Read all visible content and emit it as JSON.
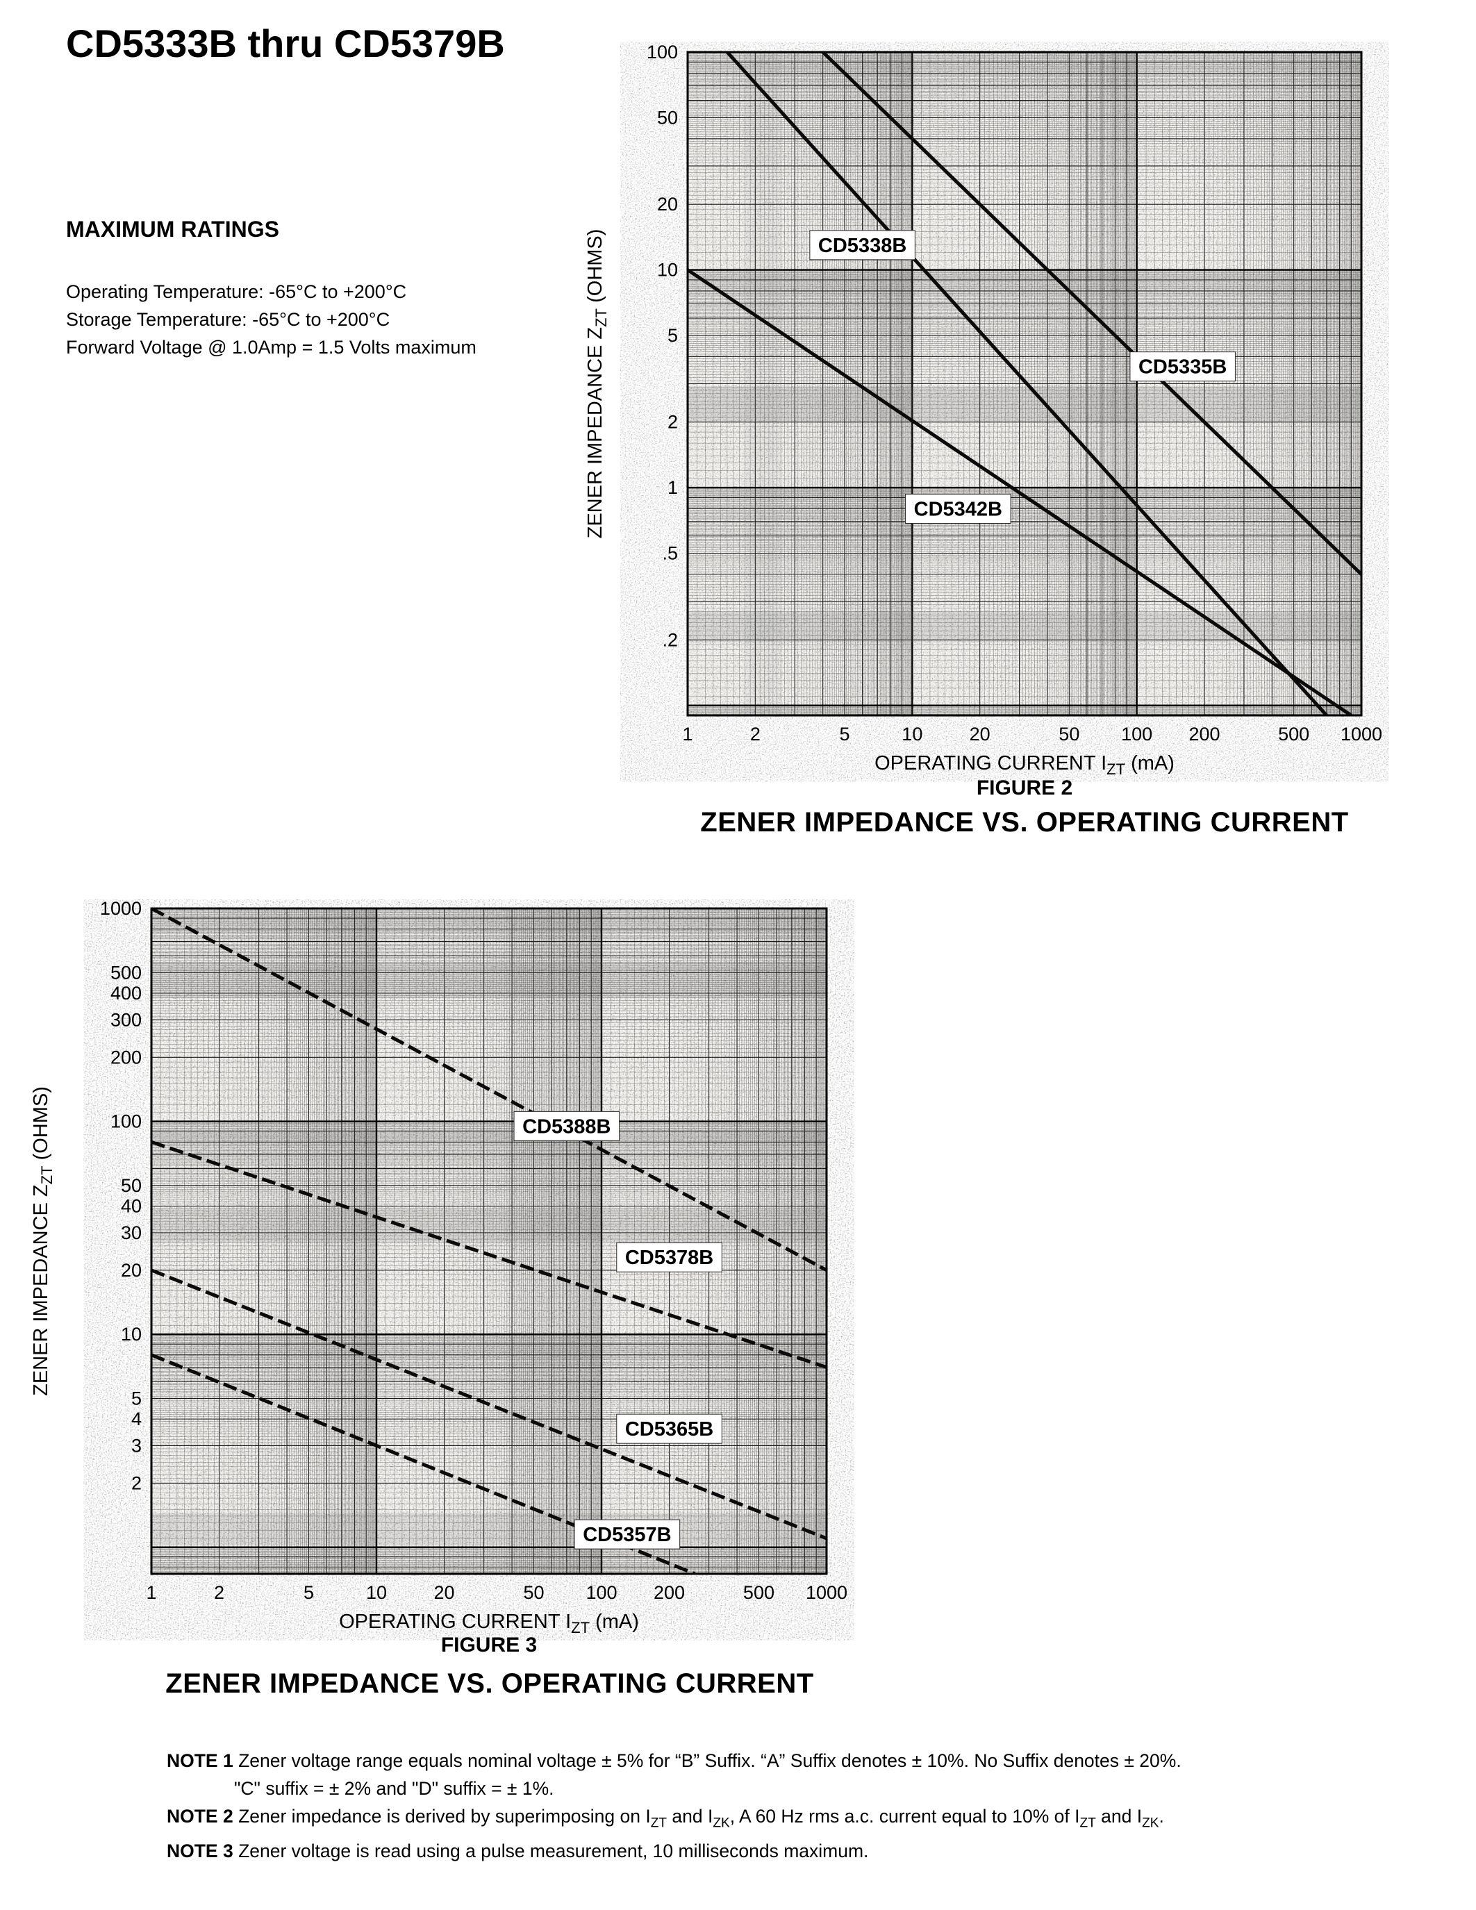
{
  "page": {
    "title": "CD5333B thru CD5379B",
    "max_ratings": {
      "heading": "MAXIMUM RATINGS",
      "lines": [
        "Operating Temperature: -65°C to +200°C",
        "Storage Temperature: -65°C to +200°C",
        "Forward Voltage @ 1.0Amp = 1.5 Volts maximum"
      ]
    },
    "notes": [
      {
        "label": "NOTE 1",
        "text": "Zener voltage range equals nominal voltage ± 5% for “B” Suffix. “A” Suffix denotes ± 10%. No Suffix denotes ± 20%.",
        "text2": "\"C\" suffix = ± 2% and \"D\" suffix = ± 1%."
      },
      {
        "label": "NOTE 2",
        "text": "Zener impedance is derived by superimposing on I~ZT~ and I~ZK~, A 60 Hz rms a.c. current equal to 10% of I~ZT~ and I~ZK~."
      },
      {
        "label": "NOTE 3",
        "text": "Zener voltage is read using a pulse measurement, 10 milliseconds maximum."
      }
    ]
  },
  "chart_data": [
    {
      "id": "figure2",
      "type": "line",
      "figure_label": "FIGURE 2",
      "title": "ZENER IMPEDANCE VS. OPERATING CURRENT",
      "xlabel": "OPERATING CURRENT I~ZT~ (mA)",
      "ylabel": "ZENER IMPEDANCE Z~ZT~ (OHMS)",
      "xscale": "log",
      "yscale": "log",
      "xlim": [
        1,
        1000
      ],
      "ylim": [
        0.09,
        100
      ],
      "grid": true,
      "xticks": {
        "values": [
          1,
          2,
          5,
          10,
          20,
          50,
          100,
          200,
          500,
          1000
        ],
        "labels": [
          "1",
          "2",
          "5",
          "10",
          "20",
          "50",
          "100",
          "200",
          "500",
          "1000"
        ]
      },
      "yticks": {
        "values": [
          100,
          50,
          20,
          10,
          5,
          2,
          1,
          0.5,
          0.2
        ],
        "labels": [
          "100",
          "50",
          "20",
          "10",
          "5",
          "2",
          "1",
          ".5",
          ".2"
        ]
      },
      "series": [
        {
          "name": "CD5338B",
          "points": [
            [
              1.5,
              100
            ],
            [
              700,
              0.09
            ]
          ],
          "label_at": [
            6,
            13
          ],
          "dashed": false
        },
        {
          "name": "CD5335B",
          "points": [
            [
              4,
              100
            ],
            [
              1000,
              0.4
            ]
          ],
          "label_at": [
            160,
            3.6
          ],
          "dashed": false
        },
        {
          "name": "CD5342B",
          "points": [
            [
              1,
              10
            ],
            [
              900,
              0.09
            ]
          ],
          "label_at": [
            16,
            0.8
          ],
          "dashed": false
        }
      ]
    },
    {
      "id": "figure3",
      "type": "line",
      "figure_label": "FIGURE 3",
      "title": "ZENER IMPEDANCE VS. OPERATING CURRENT",
      "xlabel": "OPERATING CURRENT I~ZT~ (mA)",
      "ylabel": "ZENER IMPEDANCE Z~ZT~ (OHMS)",
      "xscale": "log",
      "yscale": "log",
      "xlim": [
        1,
        1000
      ],
      "ylim": [
        0.75,
        1000
      ],
      "grid": true,
      "xticks": {
        "values": [
          1,
          2,
          5,
          10,
          20,
          50,
          100,
          200,
          500,
          1000
        ],
        "labels": [
          "1",
          "2",
          "5",
          "10",
          "20",
          "50",
          "100",
          "200",
          "500",
          "1000"
        ]
      },
      "yticks": {
        "values": [
          1000,
          500,
          400,
          300,
          200,
          100,
          50,
          40,
          30,
          20,
          10,
          5,
          4,
          3,
          2
        ],
        "labels": [
          "1000",
          "500",
          "400",
          "300",
          "200",
          "100",
          "50",
          "40",
          "30",
          "20",
          "10",
          "5",
          "4",
          "3",
          "2"
        ]
      },
      "series": [
        {
          "name": "CD5388B",
          "points": [
            [
              1,
              1000
            ],
            [
              1000,
              20
            ]
          ],
          "label_at": [
            70,
            95
          ],
          "dashed": true
        },
        {
          "name": "CD5378B",
          "points": [
            [
              1,
              80
            ],
            [
              1000,
              7
            ]
          ],
          "label_at": [
            200,
            23
          ],
          "dashed": true
        },
        {
          "name": "CD5365B",
          "points": [
            [
              1,
              20
            ],
            [
              1000,
              1.1
            ]
          ],
          "label_at": [
            200,
            3.6
          ],
          "dashed": true
        },
        {
          "name": "CD5357B",
          "points": [
            [
              1,
              8
            ],
            [
              260,
              0.75
            ]
          ],
          "label_at": [
            130,
            1.15
          ],
          "dashed": true
        }
      ]
    }
  ]
}
